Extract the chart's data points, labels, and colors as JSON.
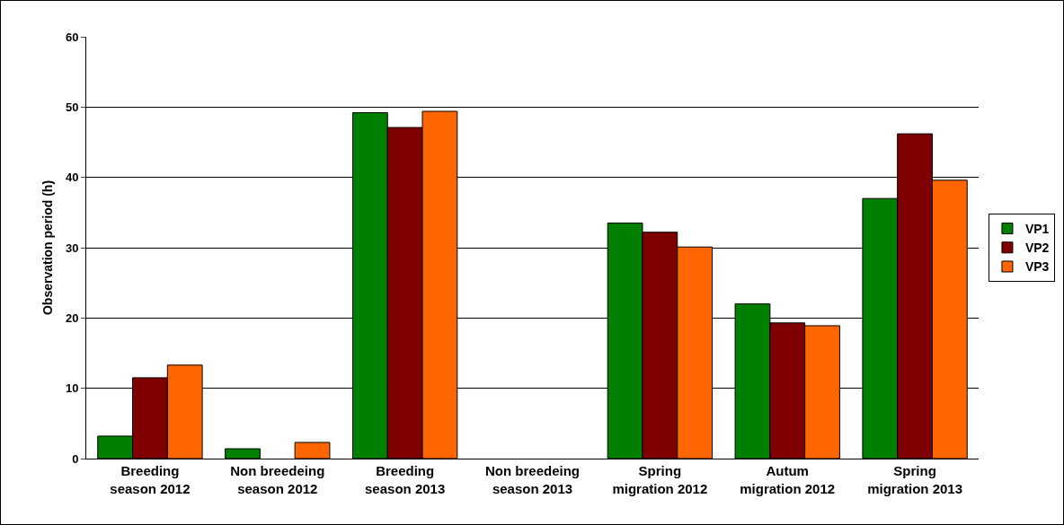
{
  "chart_data": {
    "type": "bar",
    "ylabel": "Observation period (h)",
    "categories": [
      "Breeding\nseason 2012",
      "Non breedeing\nseason 2012",
      "Breeding\nseason 2013",
      "Non breedeing\nseason 2013",
      "Spring\nmigration 2012",
      "Autum\nmigration 2012",
      "Spring\nmigration 2013"
    ],
    "series": [
      {
        "name": "VP1",
        "color": "#007f00",
        "values": [
          3.2,
          1.4,
          49.2,
          null,
          33.5,
          22,
          37
        ]
      },
      {
        "name": "VP2",
        "color": "#7f0000",
        "values": [
          11.5,
          null,
          47.1,
          null,
          32.2,
          19.3,
          46.2
        ]
      },
      {
        "name": "VP3",
        "color": "#ff6600",
        "values": [
          13.3,
          2.3,
          49.4,
          null,
          30.1,
          18.9,
          39.6
        ]
      }
    ],
    "ylim": [
      0,
      60
    ],
    "yticks": [
      0,
      10,
      20,
      30,
      40,
      50,
      60
    ],
    "grid": "y",
    "legend": "right"
  }
}
